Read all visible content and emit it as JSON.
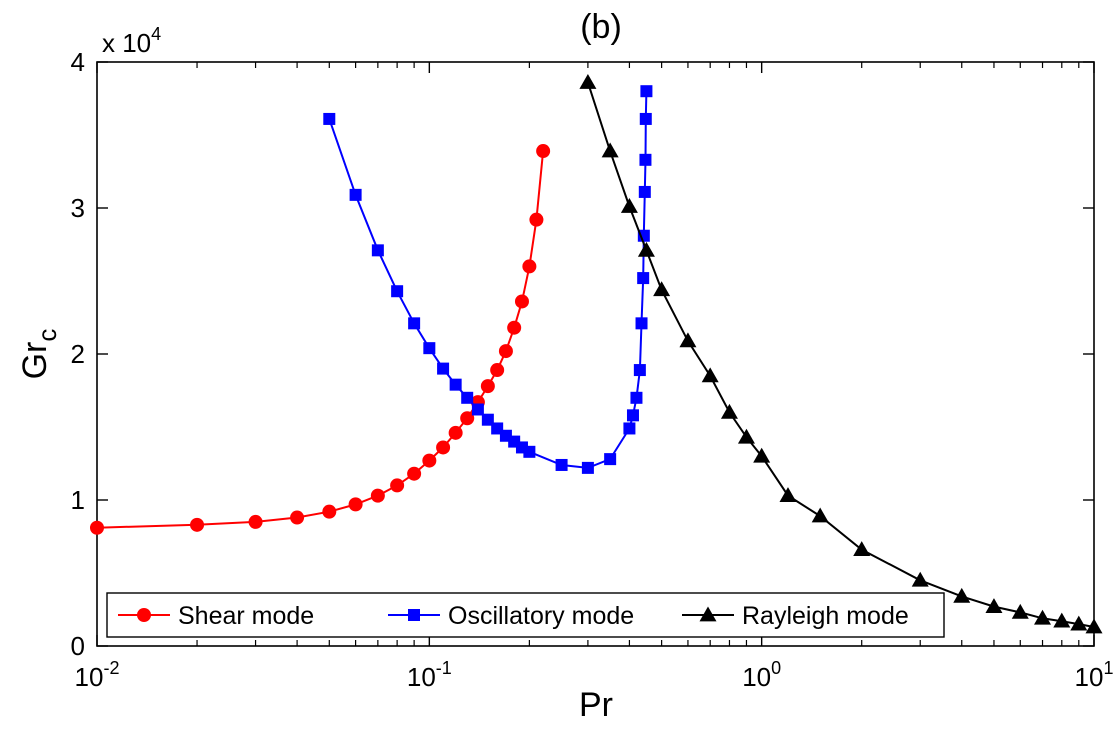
{
  "chart_data": {
    "type": "line",
    "title": "(b)",
    "xlabel": "Pr",
    "ylabel": "Gr",
    "ylabel_subscript": "c",
    "x_scale": "log",
    "xlim": [
      0.01,
      10
    ],
    "ylim": [
      0,
      40000
    ],
    "y_multiplier_label": "x 10",
    "y_multiplier_exponent": "4",
    "x_tick_labels": [
      {
        "value": 0.01,
        "base": "10",
        "exp": "-2"
      },
      {
        "value": 0.1,
        "base": "10",
        "exp": "-1"
      },
      {
        "value": 1,
        "base": "10",
        "exp": "0"
      },
      {
        "value": 10,
        "base": "10",
        "exp": "1"
      }
    ],
    "y_ticks": [
      0,
      10000,
      20000,
      30000,
      40000
    ],
    "y_tick_labels": [
      "0",
      "1",
      "2",
      "3",
      "4"
    ],
    "grid": false,
    "legend_position": "bottom",
    "series": [
      {
        "name": "Shear mode",
        "color": "#ff0000",
        "marker": "circle",
        "points": [
          [
            0.01,
            8100
          ],
          [
            0.02,
            8300
          ],
          [
            0.03,
            8500
          ],
          [
            0.04,
            8800
          ],
          [
            0.05,
            9200
          ],
          [
            0.06,
            9700
          ],
          [
            0.07,
            10300
          ],
          [
            0.08,
            11000
          ],
          [
            0.09,
            11800
          ],
          [
            0.1,
            12700
          ],
          [
            0.11,
            13600
          ],
          [
            0.12,
            14600
          ],
          [
            0.13,
            15600
          ],
          [
            0.14,
            16700
          ],
          [
            0.15,
            17800
          ],
          [
            0.16,
            18900
          ],
          [
            0.17,
            20200
          ],
          [
            0.18,
            21800
          ],
          [
            0.19,
            23600
          ],
          [
            0.2,
            26000
          ],
          [
            0.21,
            29200
          ],
          [
            0.22,
            33900
          ]
        ]
      },
      {
        "name": "Oscillatory mode",
        "color": "#0000ff",
        "marker": "square",
        "points": [
          [
            0.05,
            36100
          ],
          [
            0.06,
            30900
          ],
          [
            0.07,
            27100
          ],
          [
            0.08,
            24300
          ],
          [
            0.09,
            22100
          ],
          [
            0.1,
            20400
          ],
          [
            0.11,
            19000
          ],
          [
            0.12,
            17900
          ],
          [
            0.13,
            17000
          ],
          [
            0.14,
            16200
          ],
          [
            0.15,
            15500
          ],
          [
            0.16,
            14900
          ],
          [
            0.17,
            14400
          ],
          [
            0.18,
            14000
          ],
          [
            0.19,
            13600
          ],
          [
            0.2,
            13300
          ],
          [
            0.25,
            12400
          ],
          [
            0.3,
            12200
          ],
          [
            0.35,
            12800
          ],
          [
            0.4,
            14900
          ],
          [
            0.41,
            15800
          ],
          [
            0.42,
            17000
          ],
          [
            0.43,
            18900
          ],
          [
            0.435,
            22100
          ],
          [
            0.44,
            25200
          ],
          [
            0.442,
            28100
          ],
          [
            0.445,
            31100
          ],
          [
            0.447,
            33300
          ],
          [
            0.448,
            36100
          ],
          [
            0.45,
            38000
          ]
        ]
      },
      {
        "name": "Rayleigh mode",
        "color": "#000000",
        "marker": "triangle",
        "points": [
          [
            0.3,
            38600
          ],
          [
            0.35,
            33900
          ],
          [
            0.4,
            30100
          ],
          [
            0.45,
            27100
          ],
          [
            0.5,
            24400
          ],
          [
            0.6,
            20900
          ],
          [
            0.7,
            18500
          ],
          [
            0.8,
            16000
          ],
          [
            0.9,
            14300
          ],
          [
            1.0,
            13000
          ],
          [
            1.2,
            10300
          ],
          [
            1.5,
            8900
          ],
          [
            2.0,
            6600
          ],
          [
            3.0,
            4500
          ],
          [
            4.0,
            3400
          ],
          [
            5.0,
            2700
          ],
          [
            6.0,
            2300
          ],
          [
            7.0,
            1900
          ],
          [
            8.0,
            1700
          ],
          [
            9.0,
            1500
          ],
          [
            10.0,
            1300
          ]
        ]
      }
    ]
  }
}
